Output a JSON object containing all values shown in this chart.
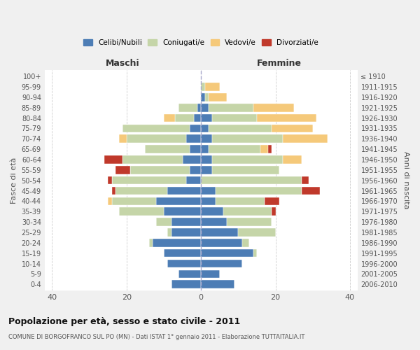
{
  "age_groups": [
    "100+",
    "95-99",
    "90-94",
    "85-89",
    "80-84",
    "75-79",
    "70-74",
    "65-69",
    "60-64",
    "55-59",
    "50-54",
    "45-49",
    "40-44",
    "35-39",
    "30-34",
    "25-29",
    "20-24",
    "15-19",
    "10-14",
    "5-9",
    "0-4"
  ],
  "birth_years": [
    "≤ 1910",
    "1911-1915",
    "1916-1920",
    "1921-1925",
    "1926-1930",
    "1931-1935",
    "1936-1940",
    "1941-1945",
    "1946-1950",
    "1951-1955",
    "1956-1960",
    "1961-1965",
    "1966-1970",
    "1971-1975",
    "1976-1980",
    "1981-1985",
    "1986-1990",
    "1991-1995",
    "1996-2000",
    "2001-2005",
    "2006-2010"
  ],
  "colors": {
    "celibi": "#4d7db5",
    "coniugati": "#c5d5a8",
    "vedovi": "#f5c97a",
    "divorziati": "#c0392b"
  },
  "maschi": {
    "celibi": [
      0,
      0,
      0,
      1,
      2,
      3,
      4,
      3,
      5,
      3,
      4,
      9,
      12,
      10,
      8,
      8,
      13,
      10,
      9,
      6,
      8
    ],
    "coniugati": [
      0,
      0,
      0,
      5,
      5,
      18,
      16,
      12,
      16,
      16,
      20,
      14,
      12,
      12,
      4,
      1,
      1,
      0,
      0,
      0,
      0
    ],
    "vedovi": [
      0,
      0,
      0,
      0,
      3,
      0,
      2,
      0,
      0,
      0,
      0,
      0,
      1,
      0,
      0,
      0,
      0,
      0,
      0,
      0,
      0
    ],
    "divorziati": [
      0,
      0,
      0,
      0,
      0,
      0,
      0,
      0,
      5,
      4,
      1,
      1,
      0,
      0,
      0,
      0,
      0,
      0,
      0,
      0,
      0
    ]
  },
  "femmine": {
    "celibi": [
      0,
      0,
      1,
      2,
      3,
      2,
      3,
      2,
      3,
      3,
      0,
      4,
      4,
      6,
      7,
      10,
      11,
      14,
      11,
      5,
      9
    ],
    "coniugati": [
      0,
      1,
      1,
      12,
      12,
      17,
      19,
      14,
      19,
      18,
      27,
      23,
      13,
      13,
      12,
      10,
      2,
      1,
      0,
      0,
      0
    ],
    "vedovi": [
      0,
      4,
      5,
      11,
      16,
      11,
      12,
      2,
      5,
      0,
      0,
      0,
      0,
      0,
      0,
      0,
      0,
      0,
      0,
      0,
      0
    ],
    "divorziati": [
      0,
      0,
      0,
      0,
      0,
      0,
      0,
      1,
      0,
      0,
      2,
      5,
      4,
      1,
      0,
      0,
      0,
      0,
      0,
      0,
      0
    ]
  },
  "xlim": 42,
  "xticks": [
    -40,
    -20,
    0,
    20,
    40
  ],
  "xticklabels": [
    "40",
    "20",
    "0",
    "20",
    "40"
  ],
  "title": "Popolazione per età, sesso e stato civile - 2011",
  "subtitle": "COMUNE DI BORGOFRANCO SUL PO (MN) - Dati ISTAT 1° gennaio 2011 - Elaborazione TUTTAITALIA.IT",
  "ylabel_left": "Fasce di età",
  "ylabel_right": "Anni di nascita",
  "background_color": "#f0f0f0",
  "plot_bg": "#ffffff"
}
